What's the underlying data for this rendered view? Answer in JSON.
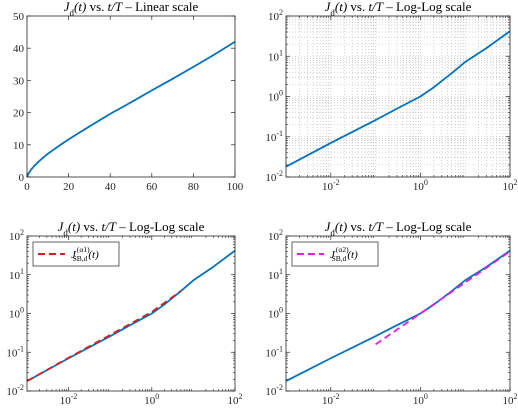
{
  "colors": {
    "main_line": "#0072BD",
    "fit1_line": "#D62020",
    "fit2_line": "#E21FE0",
    "axis": "#262626",
    "grid": "#b8b8b8"
  },
  "chart_data": [
    {
      "type": "line",
      "title": "J_d(t) vs. t/T – Linear scale",
      "title_parts": {
        "func": "J",
        "sub": "d",
        "args": "(t)",
        "vs": "vs.",
        "xvar": "t/T",
        "dash": "–",
        "scale": "Linear scale"
      },
      "x_scale": "linear",
      "y_scale": "linear",
      "xlim": [
        0,
        100
      ],
      "ylim": [
        0,
        50
      ],
      "xticks": [
        0,
        20,
        40,
        60,
        80,
        100
      ],
      "yticks": [
        0,
        10,
        20,
        30,
        40,
        50
      ],
      "xtick_labels": [
        "0",
        "20",
        "40",
        "60",
        "80",
        "100"
      ],
      "ytick_labels": [
        "0",
        "10",
        "20",
        "30",
        "40",
        "50"
      ],
      "grid": false,
      "series": [
        {
          "color": "#0072BD",
          "x": [
            0,
            0.5,
            1,
            2,
            3,
            5,
            7,
            10,
            15,
            20,
            25,
            30,
            40,
            50,
            60,
            70,
            80,
            90,
            100
          ],
          "y": [
            0,
            0.8,
            1.4,
            2.3,
            3.1,
            4.4,
            5.6,
            7.2,
            9.5,
            11.7,
            13.7,
            15.7,
            19.6,
            23.2,
            26.9,
            30.5,
            34.2,
            38.0,
            42.0
          ]
        }
      ]
    },
    {
      "type": "line",
      "title": "J_d(t) vs. t/T – Log-Log scale",
      "title_parts": {
        "func": "J",
        "sub": "d",
        "args": "(t)",
        "vs": "vs.",
        "xvar": "t/T",
        "dash": "–",
        "scale": "Log-Log scale"
      },
      "x_scale": "log",
      "y_scale": "log",
      "xlim": [
        0.001,
        100
      ],
      "ylim": [
        0.01,
        100
      ],
      "xticks": [
        0.01,
        1,
        100
      ],
      "yticks": [
        0.01,
        0.1,
        1,
        10,
        100
      ],
      "xtick_labels": [
        [
          "10",
          "-2"
        ],
        [
          "10",
          "0"
        ],
        [
          "10",
          "2"
        ]
      ],
      "ytick_labels": [
        [
          "10",
          "-2"
        ],
        [
          "10",
          "-1"
        ],
        [
          "10",
          "0"
        ],
        [
          "10",
          "1"
        ],
        [
          "10",
          "2"
        ]
      ],
      "grid": true,
      "series": [
        {
          "color": "#0072BD",
          "x": [
            0.001,
            0.01,
            0.1,
            0.3,
            1,
            2,
            5,
            10,
            30,
            100
          ],
          "y": [
            0.018,
            0.07,
            0.26,
            0.5,
            1.0,
            1.7,
            3.8,
            7.2,
            16.0,
            42.0
          ]
        }
      ]
    },
    {
      "type": "line",
      "title": "J_d(t) vs. t/T – Log-Log scale",
      "title_parts": {
        "func": "J",
        "sub": "d",
        "args": "(t)",
        "vs": "vs.",
        "xvar": "t/T",
        "dash": "–",
        "scale": "Log-Log scale"
      },
      "x_scale": "log",
      "y_scale": "log",
      "xlim": [
        0.001,
        100
      ],
      "ylim": [
        0.01,
        100
      ],
      "xticks": [
        0.01,
        1,
        100
      ],
      "yticks": [
        0.01,
        0.1,
        1,
        10,
        100
      ],
      "xtick_labels": [
        [
          "10",
          "-2"
        ],
        [
          "10",
          "0"
        ],
        [
          "10",
          "2"
        ]
      ],
      "ytick_labels": [
        [
          "10",
          "-2"
        ],
        [
          "10",
          "-1"
        ],
        [
          "10",
          "0"
        ],
        [
          "10",
          "1"
        ],
        [
          "10",
          "2"
        ]
      ],
      "grid": false,
      "legend": {
        "placement": "top-left",
        "label": "J_SB,d^(α1)(t)",
        "func": "J",
        "sub": "SB,d",
        "sup": "(α1)",
        "args": "(t)"
      },
      "series": [
        {
          "color": "#0072BD",
          "x": [
            0.001,
            0.01,
            0.1,
            0.3,
            1,
            2,
            5,
            10,
            30,
            100
          ],
          "y": [
            0.018,
            0.07,
            0.26,
            0.5,
            1.0,
            1.7,
            3.8,
            7.2,
            16.0,
            42.0
          ]
        },
        {
          "name": "J_SB,d^(α1)(t)",
          "color": "#D62020",
          "dash": true,
          "x": [
            0.001,
            0.01,
            0.1,
            1,
            5
          ],
          "y": [
            0.018,
            0.072,
            0.28,
            1.1,
            3.8
          ]
        }
      ]
    },
    {
      "type": "line",
      "title": "J_d(t) vs. t/T – Log-Log scale",
      "title_parts": {
        "func": "J",
        "sub": "d",
        "args": "(t)",
        "vs": "vs.",
        "xvar": "t/T",
        "dash": "–",
        "scale": "Log-Log scale"
      },
      "x_scale": "log",
      "y_scale": "log",
      "xlim": [
        0.001,
        100
      ],
      "ylim": [
        0.01,
        100
      ],
      "xticks": [
        0.01,
        1,
        100
      ],
      "yticks": [
        0.01,
        0.1,
        1,
        10,
        100
      ],
      "xtick_labels": [
        [
          "10",
          "-2"
        ],
        [
          "10",
          "0"
        ],
        [
          "10",
          "2"
        ]
      ],
      "ytick_labels": [
        [
          "10",
          "-2"
        ],
        [
          "10",
          "-1"
        ],
        [
          "10",
          "0"
        ],
        [
          "10",
          "1"
        ],
        [
          "10",
          "2"
        ]
      ],
      "grid": false,
      "legend": {
        "placement": "top-left",
        "label": "J_SB,d^(α2)(t)",
        "func": "J",
        "sub": "SB,d",
        "sup": "(α2)",
        "args": "(t)"
      },
      "series": [
        {
          "color": "#0072BD",
          "x": [
            0.001,
            0.01,
            0.1,
            0.3,
            1,
            2,
            5,
            10,
            30,
            100
          ],
          "y": [
            0.018,
            0.07,
            0.26,
            0.5,
            1.0,
            1.7,
            3.8,
            7.2,
            16.0,
            42.0
          ]
        },
        {
          "name": "J_SB,d^(α2)(t)",
          "color": "#E21FE0",
          "dash": true,
          "x": [
            0.1,
            1,
            10,
            100
          ],
          "y": [
            0.16,
            1.0,
            6.3,
            40.0
          ]
        }
      ]
    }
  ]
}
